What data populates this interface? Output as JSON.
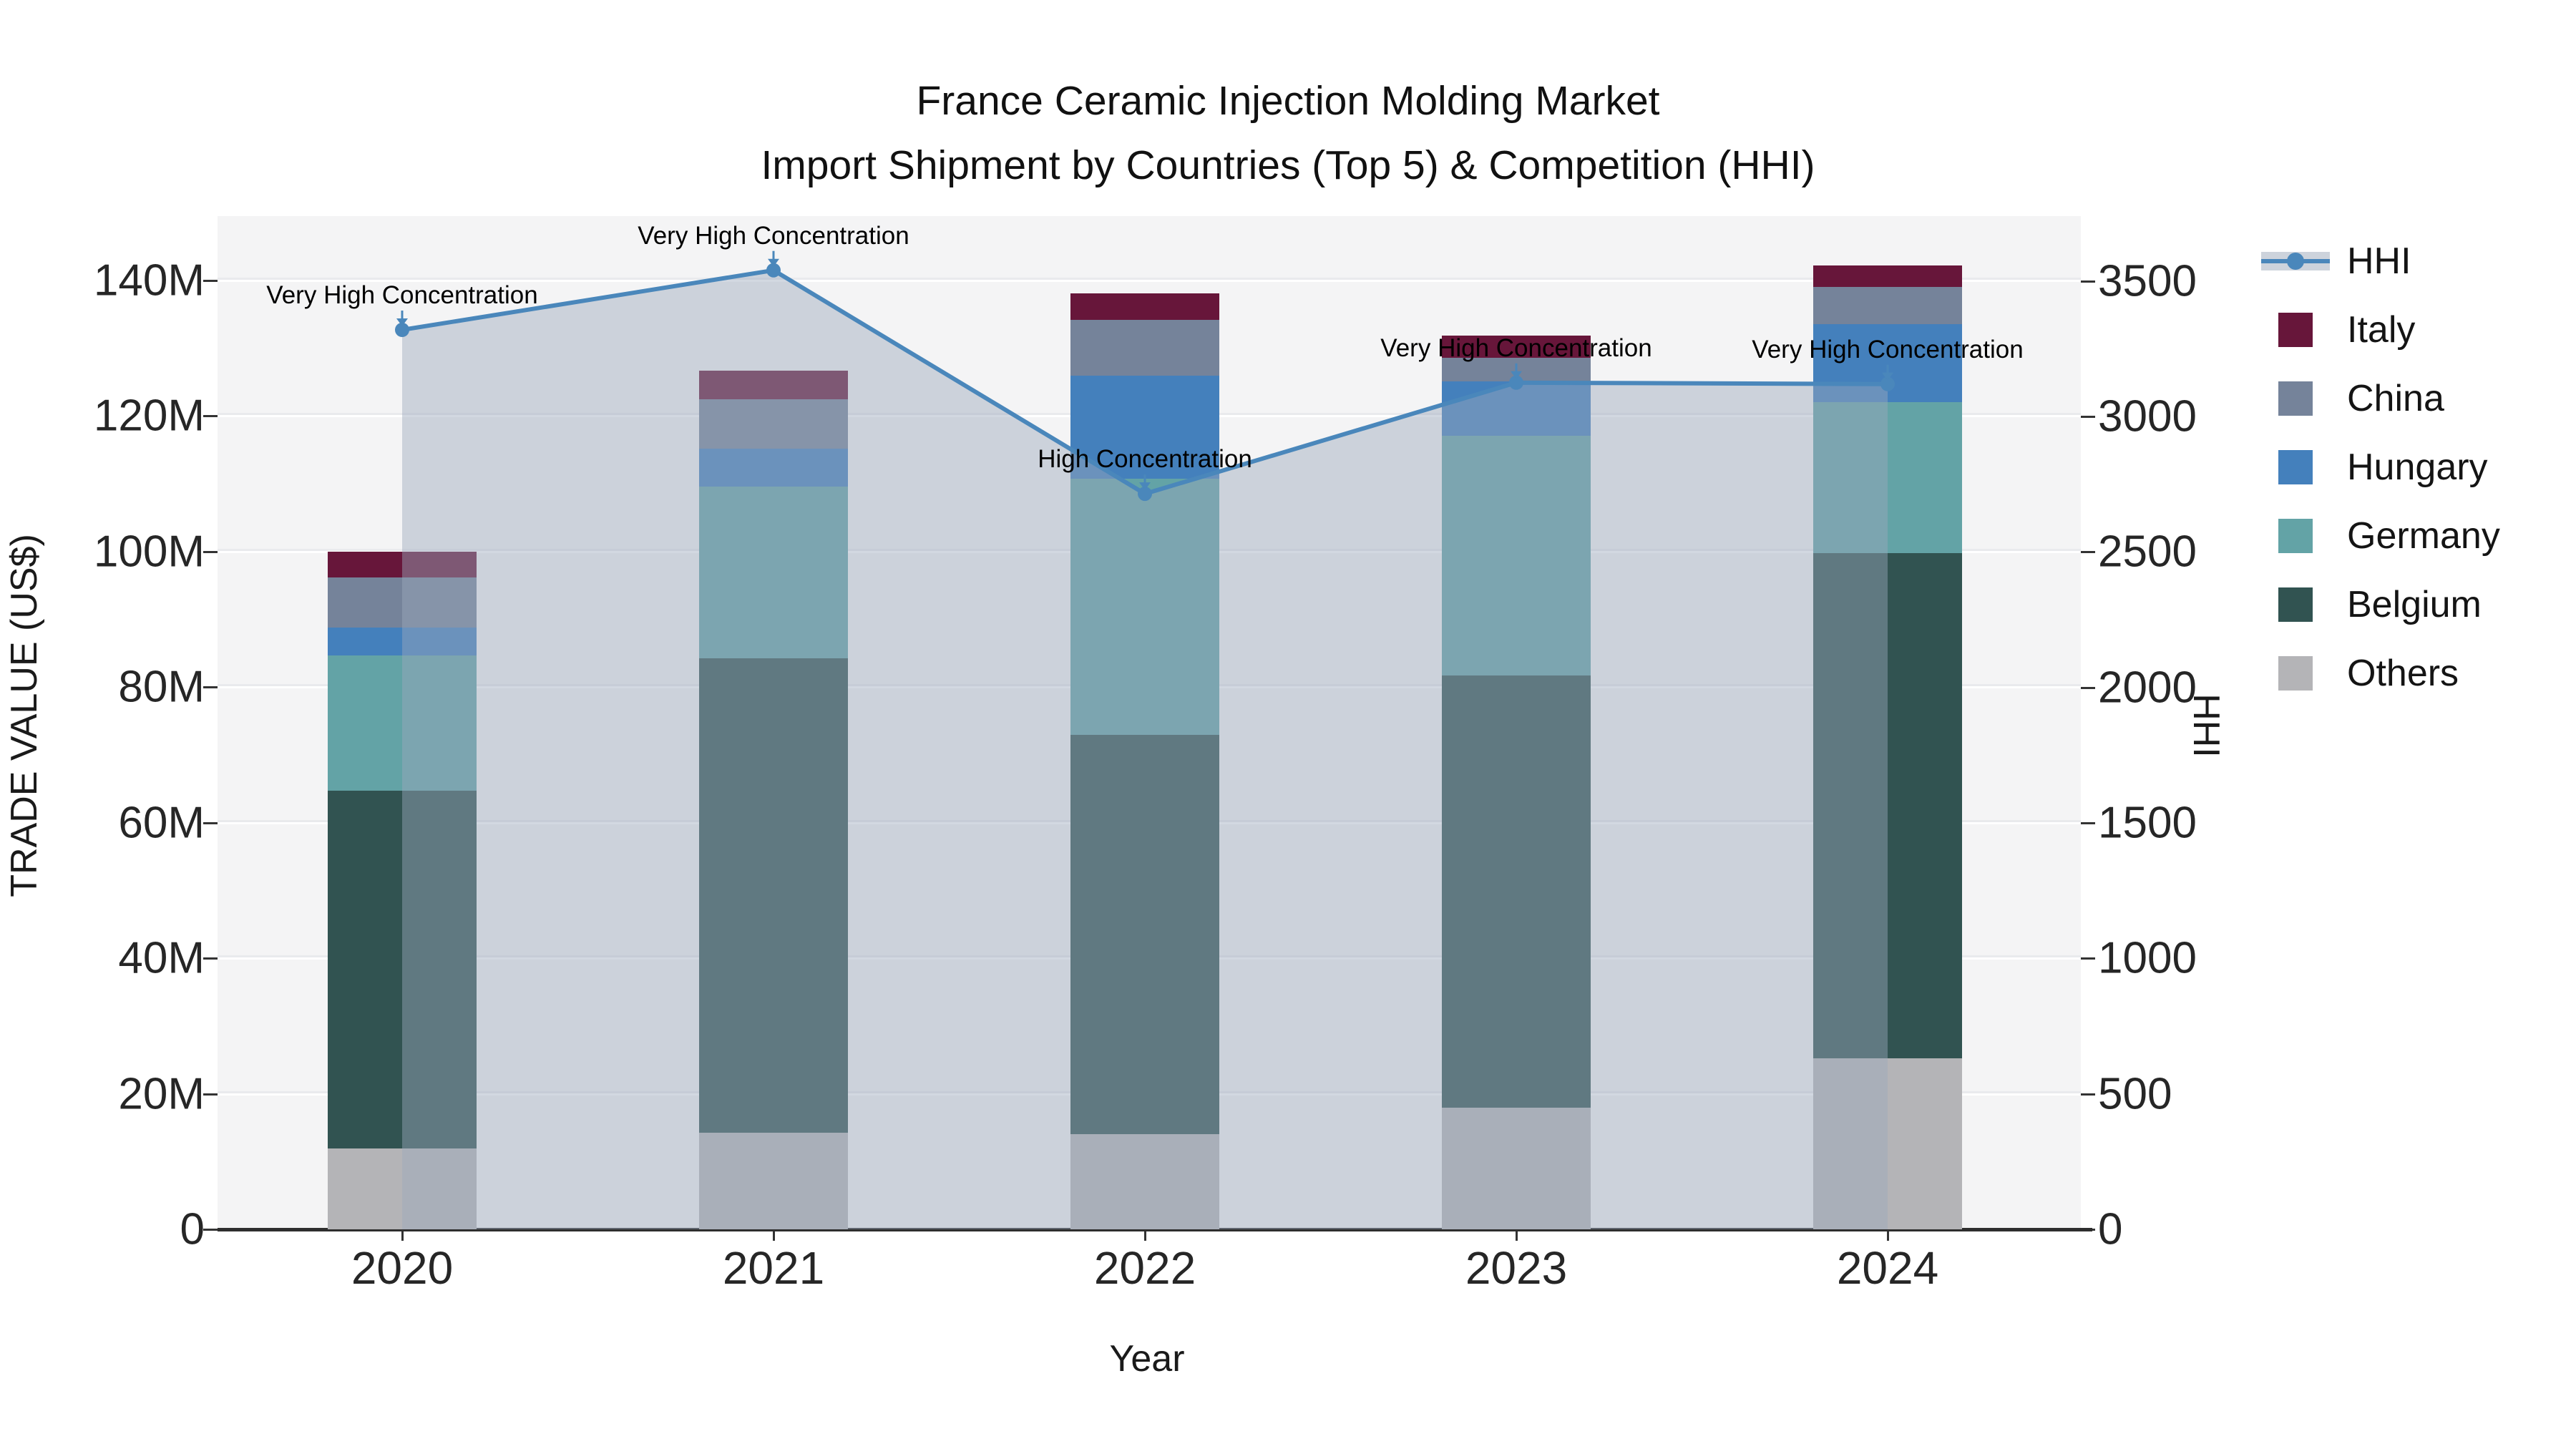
{
  "title": {
    "line1": "France Ceramic Injection Molding Market",
    "line2": "Import Shipment by Countries (Top 5) & Competition (HHI)"
  },
  "axes": {
    "left_title": "TRADE VALUE (US$)",
    "x_title": "Year",
    "right_title": "HHI",
    "left_tick_labels": [
      "0",
      "20M",
      "40M",
      "60M",
      "80M",
      "100M",
      "120M",
      "140M"
    ],
    "right_tick_labels": [
      "0",
      "500",
      "1000",
      "1500",
      "2000",
      "2500",
      "3000",
      "3500"
    ]
  },
  "chart_data": {
    "type": "bar",
    "subtype": "stacked-bars-with-hhi-line-overlay",
    "categories": [
      "2020",
      "2021",
      "2022",
      "2023",
      "2024"
    ],
    "bar_value_unit": "M US$ (trade value)",
    "series": [
      {
        "name": "Others",
        "color": "#b4b4b7",
        "values": [
          11.9,
          14.3,
          14.0,
          18.0,
          25.2
        ]
      },
      {
        "name": "Belgium",
        "color": "#315351",
        "values": [
          52.8,
          70.0,
          59.0,
          63.7,
          74.6
        ]
      },
      {
        "name": "Germany",
        "color": "#63a3a6",
        "values": [
          20.0,
          25.3,
          37.8,
          35.4,
          22.3
        ]
      },
      {
        "name": "Hungary",
        "color": "#4480bc",
        "values": [
          4.1,
          5.6,
          15.2,
          8.0,
          11.5
        ]
      },
      {
        "name": "China",
        "color": "#75839a",
        "values": [
          7.4,
          7.3,
          8.2,
          3.5,
          5.4
        ]
      },
      {
        "name": "Italy",
        "color": "#67163a",
        "values": [
          3.8,
          4.2,
          3.9,
          3.3,
          3.2
        ]
      }
    ],
    "stack_totals_M": [
      100.0,
      126.7,
      138.1,
      131.9,
      142.2
    ],
    "line_series": {
      "name": "HHI",
      "color": "#4a87bb",
      "area_color": "rgba(156,168,188,0.45)",
      "values": [
        3320,
        3540,
        2715,
        3125,
        3120
      ]
    },
    "annotations": [
      {
        "year": "2020",
        "label": "Very High Concentration"
      },
      {
        "year": "2021",
        "label": "Very High Concentration"
      },
      {
        "year": "2022",
        "label": "High Concentration"
      },
      {
        "year": "2023",
        "label": "Very High Concentration"
      },
      {
        "year": "2024",
        "label": "Very High Concentration"
      }
    ],
    "ylim_left_M": [
      0,
      149.5
    ],
    "ylim_right_hhi": [
      0,
      3740
    ],
    "left_gridlines_M": [
      20,
      40,
      60,
      80,
      100,
      120,
      140
    ],
    "grid": true,
    "legend_position": "right"
  },
  "legend": {
    "items": [
      {
        "label": "HHI",
        "swatch": "line",
        "color": "#4a87bb"
      },
      {
        "label": "Italy",
        "swatch": "square",
        "color": "#67163a"
      },
      {
        "label": "China",
        "swatch": "square",
        "color": "#75839a"
      },
      {
        "label": "Hungary",
        "swatch": "square",
        "color": "#4480bc"
      },
      {
        "label": "Germany",
        "swatch": "square",
        "color": "#63a3a6"
      },
      {
        "label": "Belgium",
        "swatch": "square",
        "color": "#315351"
      },
      {
        "label": "Others",
        "swatch": "square",
        "color": "#b4b4b7"
      }
    ]
  }
}
